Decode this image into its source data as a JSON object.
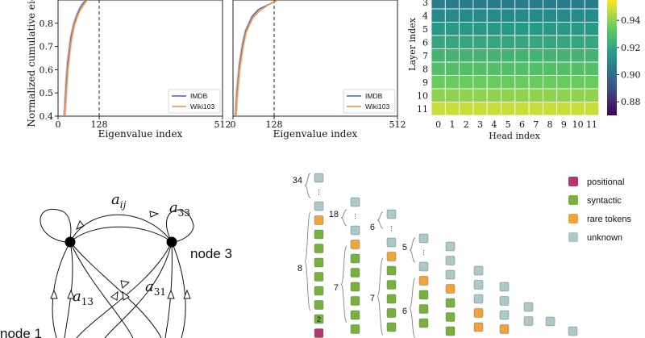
{
  "chart_data": [
    {
      "type": "line",
      "ylabel": "Normalized cumulative eige",
      "xlabel": "Eigenvalue index",
      "xticks": [
        "0",
        "128",
        "512"
      ],
      "yticks": [
        "0.4",
        "0.5",
        "0.6",
        "0.7",
        "0.8"
      ],
      "xlim": [
        0,
        512
      ],
      "ylim": [
        0.4,
        0.9
      ],
      "vline": 128,
      "legend_position": "bottom-right",
      "series": [
        {
          "name": "IMDB",
          "color": "#4a5fc1",
          "x": [
            20,
            25,
            30,
            40,
            50,
            60,
            70,
            80,
            90
          ],
          "y": [
            0.4,
            0.53,
            0.63,
            0.74,
            0.8,
            0.84,
            0.87,
            0.89,
            0.9
          ]
        },
        {
          "name": "Wiki103",
          "color": "#e8913a",
          "x": [
            20,
            25,
            30,
            40,
            50,
            60,
            70,
            80,
            90
          ],
          "y": [
            0.4,
            0.5,
            0.6,
            0.72,
            0.79,
            0.83,
            0.86,
            0.88,
            0.9
          ]
        }
      ]
    },
    {
      "type": "line",
      "xlabel": "Eigenvalue index",
      "xticks": [
        "0",
        "128",
        "512"
      ],
      "xlim": [
        0,
        512
      ],
      "ylim": [
        0.4,
        0.9
      ],
      "vline": 128,
      "legend_position": "bottom-right",
      "series": [
        {
          "name": "IMDB",
          "color": "#4a5fc1",
          "x": [
            8,
            12,
            20,
            30,
            40,
            60,
            80,
            110,
            140
          ],
          "y": [
            0.4,
            0.5,
            0.62,
            0.71,
            0.77,
            0.83,
            0.86,
            0.88,
            0.9
          ]
        },
        {
          "name": "Wiki103",
          "color": "#e8913a",
          "x": [
            8,
            12,
            20,
            30,
            40,
            60,
            80,
            110,
            140
          ],
          "y": [
            0.4,
            0.48,
            0.6,
            0.69,
            0.76,
            0.82,
            0.85,
            0.88,
            0.9
          ]
        }
      ]
    },
    {
      "type": "heatmap",
      "xlabel": "Head index",
      "ylabel": "Layer index",
      "x": [
        "0",
        "1",
        "2",
        "3",
        "4",
        "5",
        "6",
        "7",
        "8",
        "9",
        "10",
        "11"
      ],
      "y_visible": [
        "3",
        "4",
        "5",
        "6",
        "7",
        "8",
        "9",
        "10",
        "11"
      ],
      "row_values": [
        0.905,
        0.91,
        0.915,
        0.92,
        0.925,
        0.93,
        0.935,
        0.94,
        0.948
      ],
      "colorbar_ticks": [
        "0.94",
        "0.92",
        "0.90",
        "0.88"
      ],
      "colorbar_range": [
        0.87,
        0.955
      ],
      "colormap": "viridis"
    }
  ],
  "graph": {
    "edge_labels": [
      "a_ij",
      "a_33",
      "a_13",
      "a_31"
    ],
    "node_labels": [
      "node 3",
      "node 1"
    ]
  },
  "tokens": {
    "legend": [
      {
        "label": "positional",
        "color": "#b5376a"
      },
      {
        "label": "syntactic",
        "color": "#77b03c"
      },
      {
        "label": "rare tokens",
        "color": "#f2a23a"
      },
      {
        "label": "unknown",
        "color": "#adc8c8"
      }
    ],
    "counts": [
      "34",
      "18",
      "6",
      "5",
      "8",
      "7",
      "7",
      "6"
    ],
    "badge": "2"
  }
}
